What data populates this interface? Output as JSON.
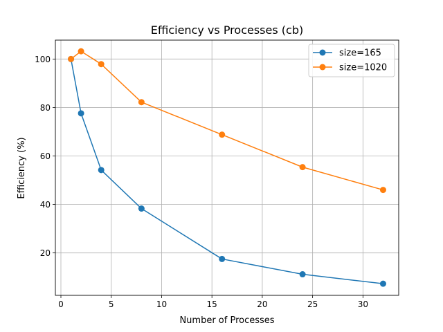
{
  "chart_data": {
    "type": "line",
    "title": "Efficiency vs Processes (cb)",
    "xlabel": "Number of Processes",
    "ylabel": "Efficiency (%)",
    "xlim": [
      -0.55,
      33.55
    ],
    "ylim": [
      2.5,
      107.8
    ],
    "xticks": [
      0,
      5,
      10,
      15,
      20,
      25,
      30
    ],
    "yticks": [
      20,
      40,
      60,
      80,
      100
    ],
    "grid": true,
    "legend_position": "top-right",
    "series": [
      {
        "name": "size=165",
        "color": "#1f77b4",
        "x": [
          1,
          2,
          4,
          8,
          16,
          24,
          32
        ],
        "y": [
          100.0,
          77.6,
          54.2,
          38.3,
          17.5,
          11.2,
          7.3
        ]
      },
      {
        "name": "size=1020",
        "color": "#ff7f0e",
        "x": [
          1,
          2,
          4,
          8,
          16,
          24,
          32
        ],
        "y": [
          100.0,
          103.2,
          97.9,
          82.2,
          68.8,
          55.4,
          46.0
        ]
      }
    ]
  }
}
